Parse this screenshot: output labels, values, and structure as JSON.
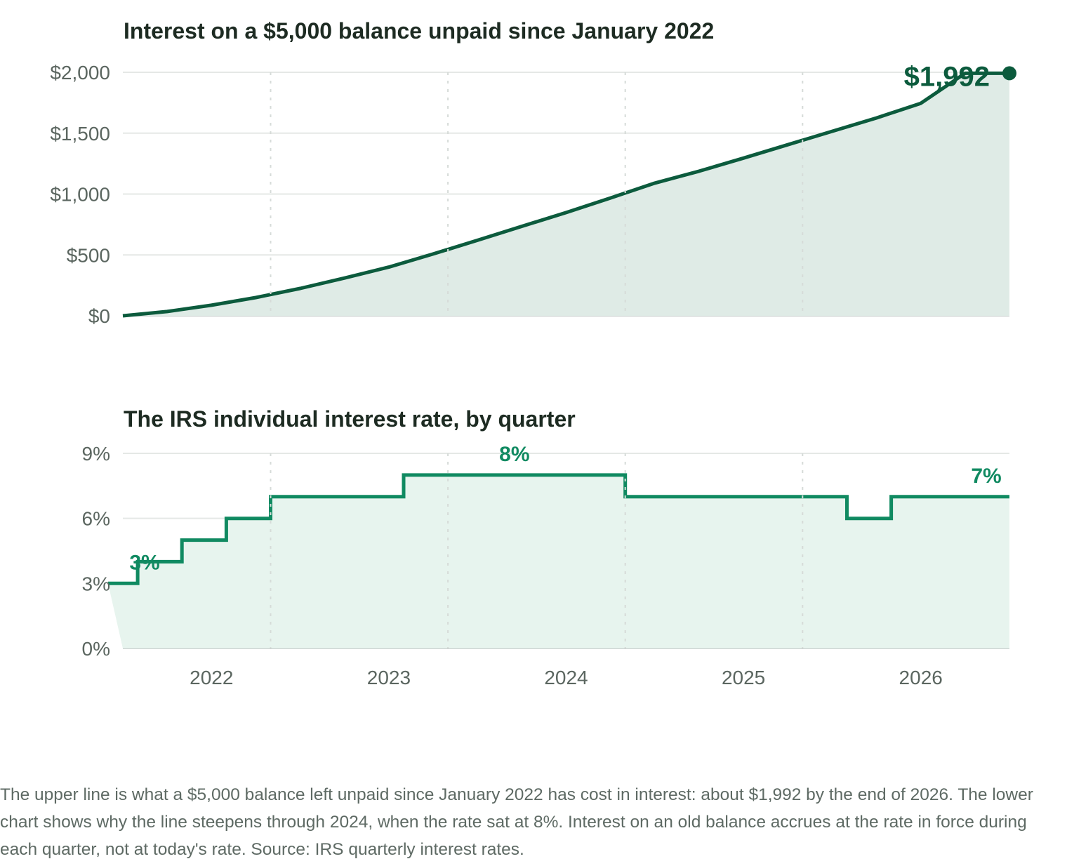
{
  "chart_data": [
    {
      "type": "area",
      "title": "Interest on a $5,000 balance unpaid since January 2022",
      "xlabel": "",
      "ylabel": "",
      "x": [
        "2021-09",
        "2021-12",
        "2022-03",
        "2022-06",
        "2022-09",
        "2022-12",
        "2023-03",
        "2023-06",
        "2023-09",
        "2023-12",
        "2024-03",
        "2024-06",
        "2024-09",
        "2024-12",
        "2025-03",
        "2025-06",
        "2025-09",
        "2025-12",
        "2026-03",
        "2026-06",
        "2026-09"
      ],
      "series": [
        {
          "values": [
            0,
            35,
            87,
            150,
            225,
            310,
            400,
            508,
            620,
            735,
            848,
            968,
            1090,
            1188,
            1295,
            1405,
            1515,
            1625,
            1745,
            1992,
            1992
          ]
        }
      ],
      "ylim": [
        0,
        2000
      ],
      "yticks": [
        "$0",
        "$500",
        "$1,000",
        "$1,500",
        "$2,000"
      ],
      "grid": true,
      "annotations": [
        {
          "x": "2026-09",
          "y": 1992,
          "text": "$1,992"
        }
      ]
    },
    {
      "type": "line",
      "title": "The IRS individual interest rate, by quarter",
      "xlabel": "",
      "ylabel": "",
      "x": [
        "2021-Q3",
        "2021-Q4",
        "2022-Q1",
        "2022-Q2",
        "2022-Q3",
        "2022-Q4",
        "2023-Q1",
        "2023-Q2",
        "2023-Q3",
        "2023-Q4",
        "2024-Q1",
        "2024-Q2",
        "2024-Q3",
        "2024-Q4",
        "2025-Q1",
        "2025-Q2",
        "2025-Q3",
        "2025-Q4",
        "2026-Q1",
        "2026-Q2"
      ],
      "series": [
        {
          "values": [
            3,
            4,
            5,
            6,
            7,
            7,
            7,
            8,
            8,
            8,
            8,
            8,
            7,
            7,
            7,
            7,
            7,
            6,
            7,
            7
          ]
        }
      ],
      "step": true,
      "ylim": [
        0,
        9
      ],
      "yticks": [
        "0%",
        "3%",
        "6%",
        "9%"
      ],
      "xticks": [
        "2022",
        "2023",
        "2024",
        "2025",
        "2026"
      ],
      "grid": true,
      "annotations": [
        {
          "x": "2021-Q3",
          "y": 3,
          "text": "3%"
        },
        {
          "x": "2024-Q1",
          "y": 8,
          "text": "8%"
        },
        {
          "x": "2026-Q2",
          "y": 7,
          "text": "7%"
        }
      ]
    }
  ],
  "colors": {
    "top_line": "#0c5b3d",
    "top_fill": "#dfebe6",
    "bottom_line": "#108a61",
    "bottom_fill": "#e7f4ee",
    "grid": "#e5e8e6",
    "axis": "#c7cccb"
  },
  "caption": "The upper line is what a $5,000 balance left unpaid since January 2022 has cost in interest: about $1,992 by the end of 2026. The lower chart shows why the line steepens through 2024, when the rate sat at 8%. Interest on an old balance accrues at the rate in force during each quarter, not at today's rate. Source: IRS quarterly interest rates."
}
